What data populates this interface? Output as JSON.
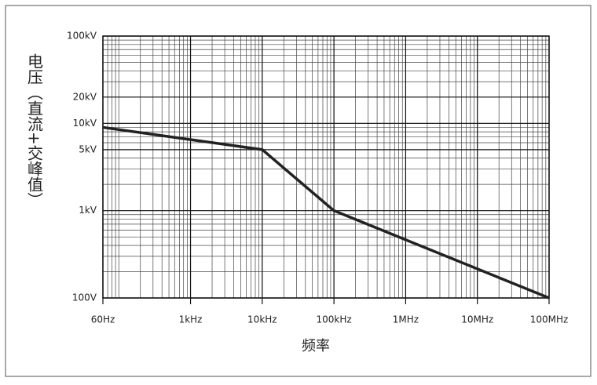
{
  "chart_data": {
    "type": "line",
    "x_label": "频率",
    "y_label": "电压（直流+交峰值）",
    "x": [
      60,
      10000,
      100000,
      100000000
    ],
    "values": [
      9000,
      5000,
      1000,
      100
    ],
    "color": "#222222",
    "xscale": "log",
    "yscale": "log",
    "grid": true,
    "xlim": [
      60,
      100000000
    ],
    "xticks": [
      {
        "value": 60,
        "label": "60Hz"
      },
      {
        "value": 1000,
        "label": "1kHz"
      },
      {
        "value": 10000,
        "label": "10kHz"
      },
      {
        "value": 100000,
        "label": "100kHz"
      },
      {
        "value": 1000000,
        "label": "1MHz"
      },
      {
        "value": 10000000,
        "label": "10MHz"
      },
      {
        "value": 100000000,
        "label": "100MHz"
      }
    ],
    "ylim": [
      100,
      100000
    ],
    "yticks": [
      {
        "value": 100,
        "label": "100V"
      },
      {
        "value": 1000,
        "label": "1kV"
      },
      {
        "value": 5000,
        "label": "5kV"
      },
      {
        "value": 10000,
        "label": "10kV"
      },
      {
        "value": 20000,
        "label": "20kV"
      },
      {
        "value": 100000,
        "label": "100kV"
      }
    ]
  }
}
